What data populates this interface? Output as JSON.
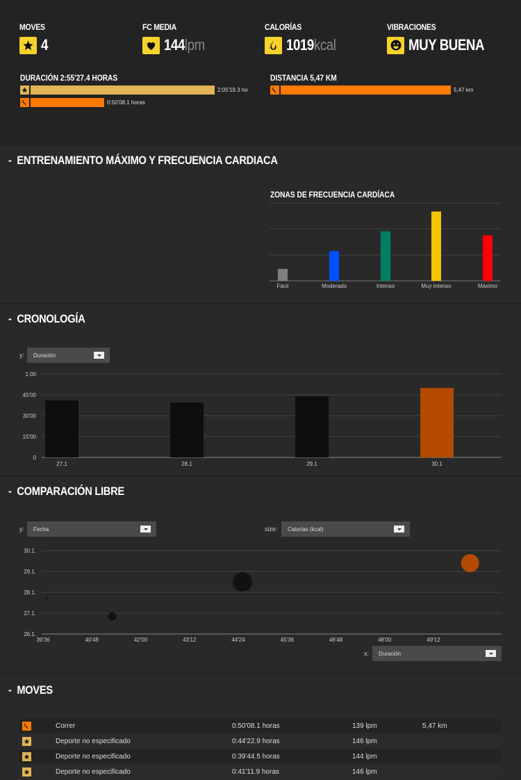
{
  "stats": {
    "moves": {
      "label": "MOVES",
      "value": "4"
    },
    "hr": {
      "label": "FC MEDIA",
      "value": "144",
      "unit": "lpm"
    },
    "cal": {
      "label": "CALORÍAS",
      "value": "1019",
      "unit": "kcal"
    },
    "vib": {
      "label": "VIBRACIONES",
      "value": "MUY BUENA"
    }
  },
  "duration": {
    "label": "DURACIÓN 2:55'27.4 HORAS",
    "bars": [
      {
        "icon": "star-icon",
        "text": "2:05'19.3 ho",
        "fraction": 0.714,
        "color": "#e1b555"
      },
      {
        "icon": "run-icon",
        "text": "0:50'08.1 horas",
        "fraction": 0.286,
        "color": "#ff7a00"
      }
    ]
  },
  "distance": {
    "label": "DISTANCIA 5,47 KM",
    "bars": [
      {
        "icon": "run-icon",
        "text": "5,47 km",
        "fraction": 1.0,
        "color": "#ff7a00"
      }
    ]
  },
  "sections": {
    "training": "ENTRENAMIENTO MÁXIMO Y FRECUENCIA CARDIACA",
    "chronology": "CRONOLOGÍA",
    "comparison": "COMPARACIÓN LIBRE",
    "moves": "MOVES"
  },
  "hr_zones_chart": {
    "type": "bar",
    "title": "ZONAS DE FRECUENCIA CARDÍACA",
    "categories": [
      "Fácil",
      "Moderado",
      "Intenso",
      "Muy intenso",
      "Máximo"
    ],
    "values": [
      3,
      7.5,
      12.5,
      17.5,
      11.5
    ],
    "colors": [
      "#808080",
      "#0050ff",
      "#008060",
      "#f2c500",
      "#ff0000"
    ],
    "ylim": [
      0,
      20
    ]
  },
  "chronology": {
    "y_label": "y:",
    "y_select": "Duración",
    "chart_data": {
      "type": "bar",
      "categories": [
        "27.1",
        "28.1",
        "29.1",
        "30.1"
      ],
      "values": [
        41,
        39.5,
        44,
        50
      ],
      "colors": [
        "#0e0e0e",
        "#0e0e0e",
        "#0e0e0e",
        "#b34a00"
      ],
      "yticks": [
        "0",
        "15'00",
        "30'00",
        "45'00",
        "1:00"
      ],
      "ylim": [
        0,
        60
      ]
    }
  },
  "comparison": {
    "y_label": "y:",
    "y_select": "Fecha",
    "size_label": "size:",
    "size_select": "Calorías (kcal)",
    "x_label": "x:",
    "x_select": "Duración",
    "chart_data": {
      "type": "scatter",
      "yticks": [
        "26.1.",
        "27.1.",
        "28.1.",
        "29.1.",
        "30.1."
      ],
      "xticks": [
        "39'36",
        "40'48",
        "42'00",
        "43'12",
        "44'24",
        "45'36",
        "46'48",
        "48'00",
        "49'12"
      ],
      "points": [
        {
          "x": 39.7,
          "y": 27.7,
          "r": 1.5,
          "color": "#111111"
        },
        {
          "x": 41.3,
          "y": 26.85,
          "r": 6,
          "color": "#111111"
        },
        {
          "x": 44.5,
          "y": 28.5,
          "r": 14,
          "color": "#111111"
        },
        {
          "x": 50.1,
          "y": 29.4,
          "r": 13,
          "color": "#b34a00"
        }
      ],
      "xlim": [
        39.6,
        50.4
      ],
      "ylim": [
        26,
        30
      ]
    }
  },
  "moves_table": [
    {
      "icon": "run-icon",
      "sport": "Correr",
      "duration": "0:50'08.1 horas",
      "hr": "139 lpm",
      "distance": "5,47 km"
    },
    {
      "icon": "star-icon",
      "sport": "Deporte no especificado",
      "duration": "0:44'22.9 horas",
      "hr": "146 lpm",
      "distance": ""
    },
    {
      "icon": "star-icon",
      "sport": "Deporte no especificado",
      "duration": "0:39'44.5 horas",
      "hr": "144 lpm",
      "distance": ""
    },
    {
      "icon": "star-icon",
      "sport": "Deporte no especificado",
      "duration": "0:41'11.9 horas",
      "hr": "146 lpm",
      "distance": ""
    }
  ]
}
